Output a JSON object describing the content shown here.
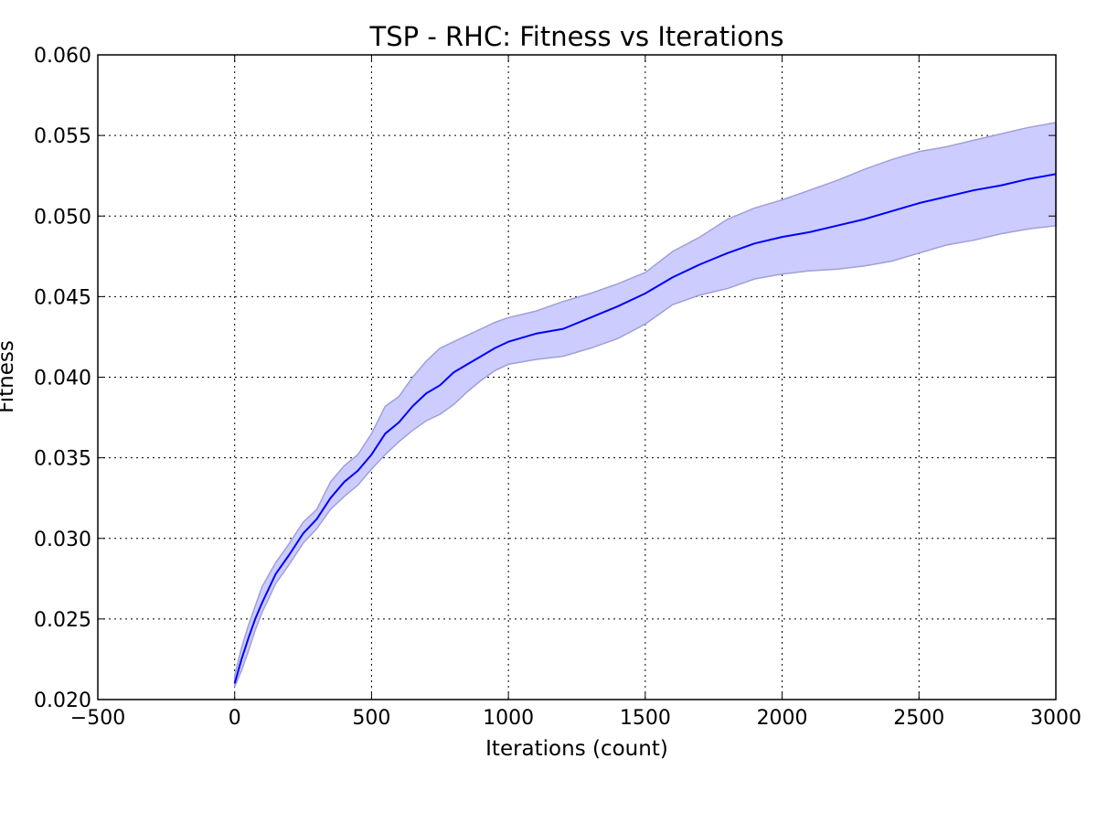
{
  "chart_data": {
    "type": "line",
    "title": "TSP - RHC: Fitness vs Iterations",
    "xlabel": "Iterations (count)",
    "ylabel": "Fitness",
    "xlim": [
      -500,
      3000
    ],
    "ylim": [
      0.02,
      0.06
    ],
    "x_ticks": [
      -500,
      0,
      500,
      1000,
      1500,
      2000,
      2500,
      3000
    ],
    "x_tick_labels": [
      "−500",
      "0",
      "500",
      "1000",
      "1500",
      "2000",
      "2500",
      "3000"
    ],
    "y_ticks": [
      0.02,
      0.025,
      0.03,
      0.035,
      0.04,
      0.045,
      0.05,
      0.055,
      0.06
    ],
    "y_tick_labels": [
      "0.020",
      "0.025",
      "0.030",
      "0.035",
      "0.040",
      "0.045",
      "0.050",
      "0.055",
      "0.060"
    ],
    "grid": true,
    "series": [
      {
        "line_color": "#0000ff",
        "band_color": "#ccccff",
        "x": [
          0,
          25,
          50,
          75,
          100,
          150,
          200,
          250,
          300,
          350,
          400,
          450,
          500,
          550,
          600,
          650,
          700,
          750,
          800,
          850,
          900,
          950,
          1000,
          1100,
          1200,
          1300,
          1400,
          1500,
          1600,
          1700,
          1800,
          1900,
          2000,
          2100,
          2200,
          2300,
          2400,
          2500,
          2600,
          2700,
          2800,
          2900,
          3000
        ],
        "mean": [
          0.021,
          0.0225,
          0.0238,
          0.025,
          0.026,
          0.0278,
          0.029,
          0.0303,
          0.0312,
          0.0325,
          0.0335,
          0.0342,
          0.0352,
          0.0365,
          0.0372,
          0.0382,
          0.039,
          0.0395,
          0.0403,
          0.0408,
          0.0413,
          0.0418,
          0.0422,
          0.0427,
          0.043,
          0.0437,
          0.0444,
          0.0452,
          0.0462,
          0.047,
          0.0477,
          0.0483,
          0.0487,
          0.049,
          0.0494,
          0.0498,
          0.0503,
          0.0508,
          0.0512,
          0.0516,
          0.0519,
          0.0523,
          0.0526
        ],
        "upper": [
          0.0215,
          0.0232,
          0.0246,
          0.0258,
          0.027,
          0.0285,
          0.0297,
          0.031,
          0.0318,
          0.0335,
          0.0345,
          0.0352,
          0.0365,
          0.0382,
          0.0388,
          0.04,
          0.041,
          0.0418,
          0.0422,
          0.0426,
          0.043,
          0.0434,
          0.0437,
          0.0441,
          0.0447,
          0.0452,
          0.0458,
          0.0465,
          0.0478,
          0.0487,
          0.0498,
          0.0505,
          0.051,
          0.0516,
          0.0522,
          0.0529,
          0.0535,
          0.054,
          0.0543,
          0.0547,
          0.0551,
          0.0555,
          0.0558
        ],
        "lower": [
          0.0208,
          0.0218,
          0.023,
          0.0243,
          0.0254,
          0.0272,
          0.0284,
          0.0297,
          0.0306,
          0.0318,
          0.0326,
          0.0333,
          0.0343,
          0.0352,
          0.036,
          0.0367,
          0.0373,
          0.0377,
          0.0383,
          0.0391,
          0.0398,
          0.0404,
          0.0408,
          0.0411,
          0.0413,
          0.0418,
          0.0424,
          0.0433,
          0.0445,
          0.0451,
          0.0455,
          0.0461,
          0.0464,
          0.0466,
          0.0467,
          0.0469,
          0.0472,
          0.0477,
          0.0482,
          0.0485,
          0.0489,
          0.0492,
          0.0494
        ]
      }
    ]
  }
}
